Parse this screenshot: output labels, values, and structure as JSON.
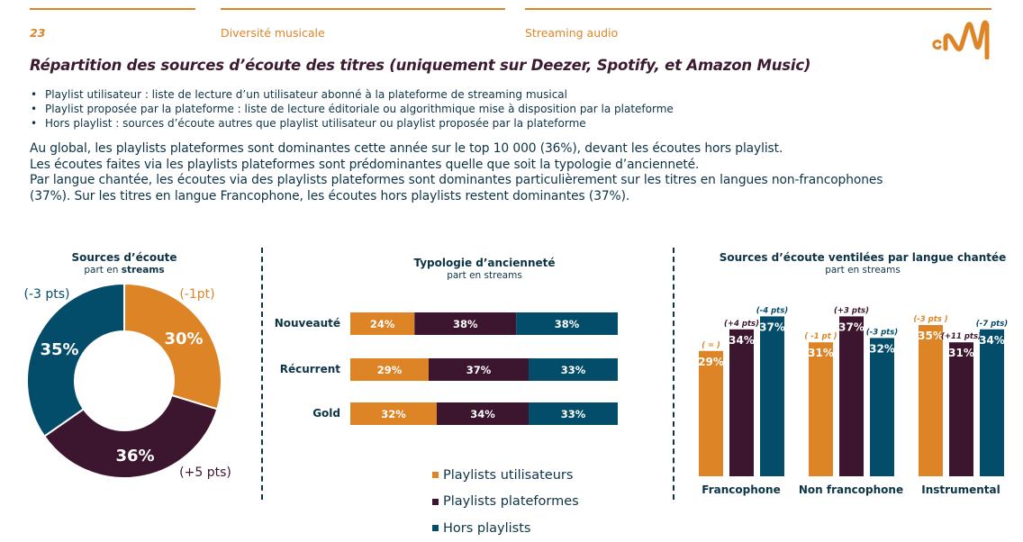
{
  "header": {
    "page_number": "23",
    "section": "Diversité musicale",
    "subsection": "Streaming audio",
    "logo_text": "cNM",
    "accent_color": "#dd8427"
  },
  "title": "Répartition des sources d’écoute des titres (uniquement sur Deezer, Spotify, et Amazon Music)",
  "definitions": [
    "Playlist utilisateur : liste de lecture d’un utilisateur abonné à la plateforme de streaming musical",
    "Playlist proposée par la plateforme : liste de lecture éditoriale ou algorithmique mise à disposition par la plateforme",
    "Hors playlist : sources d’écoute autres que playlist utilisateur ou playlist proposée par la plateforme"
  ],
  "summary": [
    "Au global, les playlists plateformes sont dominantes cette année sur le top 10 000 (36%), devant les écoutes hors playlist.",
    "Les écoutes faites via les playlists plateformes sont prédominantes quelle que soit la typologie d’ancienneté.",
    "Par langue chantée, les écoutes via des playlists plateformes sont dominantes particulièrement sur les titres en langues non-francophones",
    "(37%). Sur les titres en langue Francophone, les écoutes hors playlists restent dominantes (37%)."
  ],
  "colors": {
    "utilisateurs": "#dd8427",
    "plateformes": "#3c162e",
    "hors": "#034d6a",
    "text": "#0d3446"
  },
  "legend": [
    {
      "label": "Playlists utilisateurs",
      "color": "#dd8427"
    },
    {
      "label": "Playlists plateformes",
      "color": "#3c162e"
    },
    {
      "label": "Hors playlists",
      "color": "#034d6a"
    }
  ],
  "chart_data": [
    {
      "type": "pie",
      "title": "Sources d’écoute",
      "subtitle_prefix": "part en",
      "subtitle_bold": "streams",
      "slices": [
        {
          "name": "Playlists utilisateurs",
          "value": 30,
          "label": "30%",
          "change": "(-1pt)",
          "color": "#dd8427"
        },
        {
          "name": "Playlists plateformes",
          "value": 36,
          "label": "36%",
          "change": "(+5 pts)",
          "color": "#3c162e"
        },
        {
          "name": "Hors playlists",
          "value": 35,
          "label": "35%",
          "change": "(-3 pts)",
          "color": "#034d6a"
        }
      ]
    },
    {
      "type": "bar",
      "orientation": "horizontal-stacked",
      "title": "Typologie d’ancienneté",
      "subtitle": "part en streams",
      "categories": [
        "Nouveauté",
        "Récurrent",
        "Gold"
      ],
      "series": [
        {
          "name": "Playlists utilisateurs",
          "values": [
            24,
            29,
            32
          ],
          "labels": [
            "24%",
            "29%",
            "32%"
          ],
          "color": "#dd8427"
        },
        {
          "name": "Playlists plateformes",
          "values": [
            38,
            37,
            34
          ],
          "labels": [
            "38%",
            "37%",
            "34%"
          ],
          "color": "#3c162e"
        },
        {
          "name": "Hors playlists",
          "values": [
            38,
            33,
            33
          ],
          "labels": [
            "38%",
            "33%",
            "33%"
          ],
          "color": "#034d6a"
        }
      ]
    },
    {
      "type": "bar",
      "orientation": "vertical-grouped",
      "title": "Sources d’écoute ventilées par langue chantée",
      "subtitle": "part en streams",
      "categories": [
        "Francophone",
        "Non francophone",
        "Instrumental"
      ],
      "ylim": [
        0,
        37
      ],
      "series": [
        {
          "name": "Playlists utilisateurs",
          "values": [
            29,
            31,
            35
          ],
          "labels": [
            "29%",
            "31%",
            "35%"
          ],
          "changes": [
            "( = )",
            "( -1 pt )",
            "(-3 pts )"
          ],
          "color": "#dd8427"
        },
        {
          "name": "Playlists plateformes",
          "values": [
            34,
            37,
            31
          ],
          "labels": [
            "34%",
            "37%",
            "31%"
          ],
          "changes": [
            "(+4 pts)",
            "(+3 pts)",
            "(+11 pts)"
          ],
          "color": "#3c162e"
        },
        {
          "name": "Hors playlists",
          "values": [
            37,
            32,
            34
          ],
          "labels": [
            "37%",
            "32%",
            "34%"
          ],
          "changes": [
            "(-4 pts)",
            "(-3 pts)",
            "(-7 pts)"
          ],
          "color": "#034d6a"
        }
      ]
    }
  ]
}
